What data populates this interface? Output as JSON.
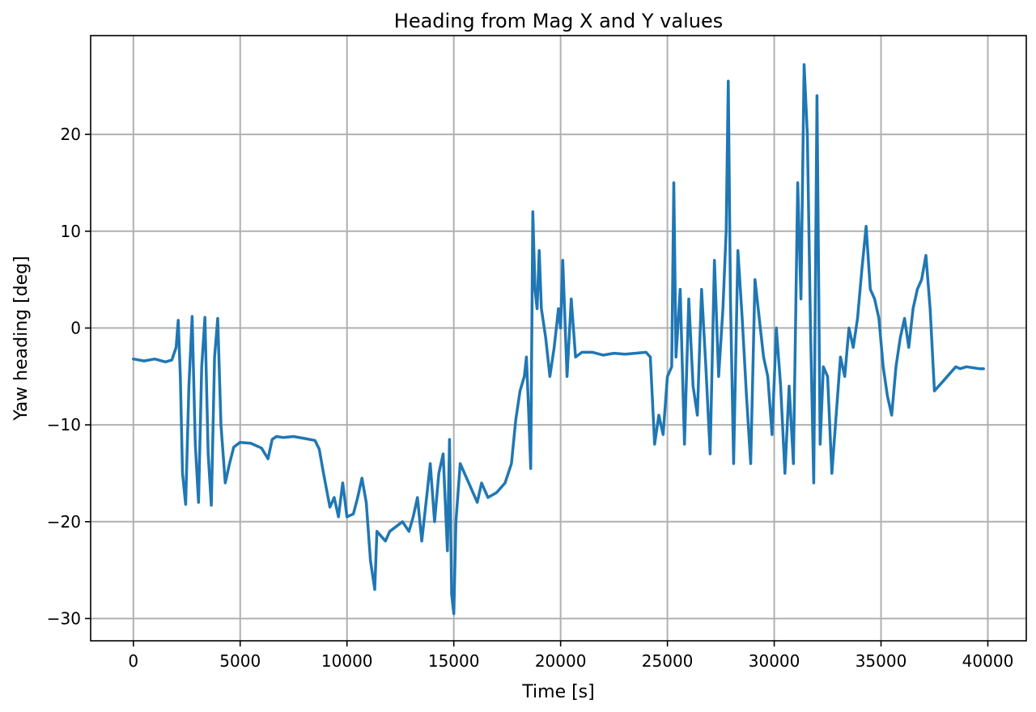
{
  "chart_data": {
    "type": "line",
    "title": "Heading from Mag X and Y values",
    "xlabel": "Time [s]",
    "ylabel": "Yaw heading [deg]",
    "xlim": [
      -2000,
      41800
    ],
    "ylim": [
      -32.3,
      30.2
    ],
    "xticks": [
      0,
      5000,
      10000,
      15000,
      20000,
      25000,
      30000,
      35000,
      40000
    ],
    "xtick_labels": [
      "0",
      "5000",
      "10000",
      "15000",
      "20000",
      "25000",
      "30000",
      "35000",
      "40000"
    ],
    "yticks": [
      -30,
      -20,
      -10,
      0,
      10,
      20
    ],
    "ytick_labels": [
      "−30",
      "−20",
      "−10",
      "0",
      "10",
      "20"
    ],
    "grid": true,
    "series": [
      {
        "color": "#1f77b4",
        "x": [
          0,
          500,
          1000,
          1500,
          1800,
          2000,
          2100,
          2200,
          2300,
          2450,
          2600,
          2750,
          2900,
          3050,
          3200,
          3350,
          3500,
          3650,
          3800,
          3950,
          4100,
          4300,
          4500,
          4700,
          5000,
          5500,
          6000,
          6300,
          6500,
          6700,
          7000,
          7500,
          8000,
          8500,
          8700,
          8900,
          9200,
          9400,
          9600,
          9800,
          10000,
          10300,
          10500,
          10700,
          10900,
          11100,
          11300,
          11400,
          11600,
          11800,
          12000,
          12300,
          12600,
          12900,
          13100,
          13300,
          13500,
          13700,
          13900,
          14100,
          14300,
          14500,
          14700,
          14800,
          14900,
          15000,
          15100,
          15300,
          15500,
          15700,
          15900,
          16100,
          16300,
          16600,
          17000,
          17400,
          17700,
          17900,
          18100,
          18300,
          18400,
          18500,
          18600,
          18700,
          18800,
          18900,
          19000,
          19100,
          19300,
          19500,
          19700,
          19900,
          20000,
          20100,
          20300,
          20500,
          20700,
          21000,
          21500,
          22000,
          22500,
          23000,
          23500,
          24000,
          24200,
          24400,
          24600,
          24800,
          25000,
          25200,
          25300,
          25400,
          25600,
          25800,
          26000,
          26200,
          26400,
          26600,
          26800,
          27000,
          27200,
          27400,
          27600,
          27750,
          27850,
          27950,
          28100,
          28300,
          28500,
          28700,
          28900,
          29100,
          29300,
          29500,
          29700,
          29900,
          30100,
          30300,
          30500,
          30700,
          30900,
          31100,
          31250,
          31400,
          31550,
          31700,
          31850,
          32000,
          32150,
          32300,
          32500,
          32700,
          32900,
          33100,
          33300,
          33500,
          33700,
          33900,
          34100,
          34300,
          34500,
          34700,
          34900,
          35100,
          35300,
          35500,
          35700,
          35900,
          36100,
          36300,
          36500,
          36700,
          36900,
          37100,
          37300,
          37500,
          37700,
          37900,
          38100,
          38300,
          38500,
          38700,
          39000,
          39300,
          39600,
          39800
        ],
        "y": [
          -3.2,
          -3.4,
          -3.2,
          -3.5,
          -3.3,
          -2,
          0.8,
          -5,
          -15,
          -18.2,
          -6,
          1.2,
          -12,
          -18,
          -4,
          1.1,
          -13,
          -18.3,
          -3,
          1,
          -10,
          -16,
          -14,
          -12.3,
          -11.8,
          -11.9,
          -12.4,
          -13.5,
          -11.5,
          -11.2,
          -11.3,
          -11.2,
          -11.4,
          -11.6,
          -12.5,
          -15,
          -18.5,
          -17.5,
          -19.5,
          -16,
          -19.5,
          -19.2,
          -17.5,
          -15.5,
          -18,
          -24,
          -27,
          -21,
          -21.5,
          -22,
          -21,
          -20.5,
          -20,
          -21,
          -19.5,
          -17.5,
          -22,
          -18,
          -14,
          -20,
          -15,
          -13,
          -23,
          -11.5,
          -27.5,
          -29.5,
          -20,
          -14,
          -15,
          -16,
          -17,
          -18,
          -16,
          -17.5,
          -17,
          -16,
          -14,
          -9.5,
          -6.5,
          -5,
          -3,
          -8.5,
          -14.5,
          12,
          4,
          2,
          8,
          2,
          -1,
          -5,
          -2,
          2,
          0,
          7,
          -5,
          3,
          -3,
          -2.5,
          -2.5,
          -2.8,
          -2.6,
          -2.7,
          -2.6,
          -2.5,
          -3,
          -12,
          -9,
          -11,
          -5,
          -4,
          15,
          -3,
          4,
          -12,
          3,
          -6,
          -9,
          4,
          -4,
          -13,
          7,
          -5,
          2,
          10,
          25.5,
          3,
          -14,
          8,
          1,
          -7,
          -14,
          5,
          1,
          -3,
          -5,
          -11,
          0,
          -6,
          -15,
          -6,
          -14,
          15,
          3,
          27.2,
          20,
          0,
          -16,
          24,
          -12,
          -4,
          -5,
          -15,
          -9,
          -3,
          -5,
          0,
          -2,
          1,
          6,
          10.5,
          4,
          3,
          1,
          -4,
          -7,
          -9,
          -4,
          -1,
          1,
          -2,
          2,
          4,
          5,
          7.5,
          2,
          -6.5,
          -6,
          -5.5,
          -5,
          -4.5,
          -4,
          -4.2,
          -4,
          -4.1,
          -4.2,
          -4.2
        ]
      }
    ]
  }
}
